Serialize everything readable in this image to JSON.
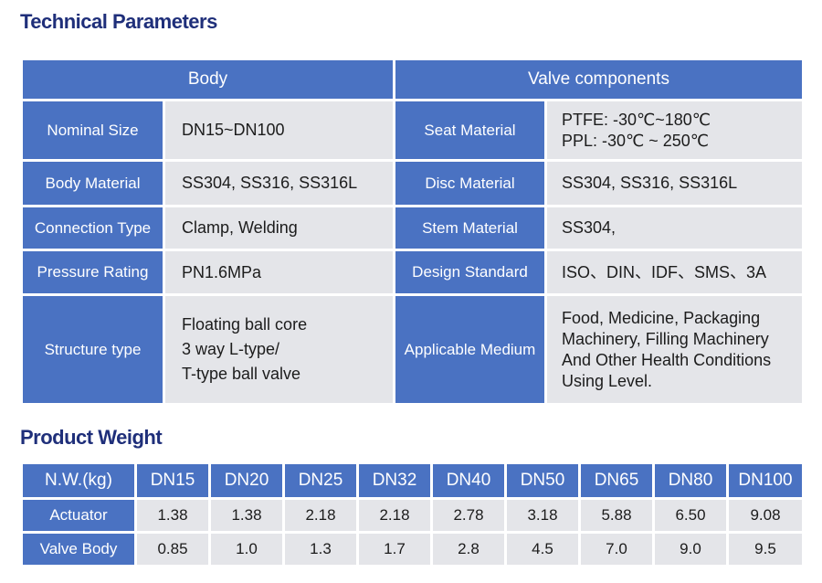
{
  "technical": {
    "title": "Technical Parameters",
    "header_body": "Body",
    "header_valve": "Valve components",
    "rows": [
      {
        "label_left": "Nominal Size",
        "value_left": [
          "DN15~DN100"
        ],
        "label_right": "Seat Material",
        "value_right": [
          "PTFE: -30℃~180℃",
          "PPL:  -30℃ ~ 250℃"
        ]
      },
      {
        "label_left": "Body Material",
        "value_left": [
          "SS304, SS316, SS316L"
        ],
        "label_right": "Disc Material",
        "value_right": [
          "SS304, SS316, SS316L"
        ]
      },
      {
        "label_left": "Connection Type",
        "value_left": [
          "Clamp, Welding"
        ],
        "label_right": "Stem Material",
        "value_right": [
          "SS304,"
        ]
      },
      {
        "label_left": "Pressure Rating",
        "value_left": [
          "PN1.6MPa"
        ],
        "label_right": "Design Standard",
        "value_right": [
          "ISO、DIN、IDF、SMS、3A"
        ]
      },
      {
        "label_left": "Structure type",
        "value_left": [
          "Floating ball core",
          "3 way L-type/",
          "T-type ball valve"
        ],
        "label_right": "Applicable Medium",
        "value_right": [
          "Food, Medicine, Packaging",
          "Machinery, Filling Machinery",
          "And Other Health Conditions",
          "Using Level."
        ]
      }
    ]
  },
  "weight": {
    "title": "Product Weight",
    "header_label": "N.W.(kg)",
    "sizes": [
      "DN15",
      "DN20",
      "DN25",
      "DN32",
      "DN40",
      "DN50",
      "DN65",
      "DN80",
      "DN100"
    ],
    "rows": [
      {
        "label": "Actuator",
        "values": [
          "1.38",
          "1.38",
          "2.18",
          "2.18",
          "2.78",
          "3.18",
          "5.88",
          "6.50",
          "9.08"
        ]
      },
      {
        "label": "Valve Body",
        "values": [
          "0.85",
          "1.0",
          "1.3",
          "1.7",
          "2.8",
          "4.5",
          "7.0",
          "9.0",
          "9.5"
        ]
      }
    ]
  },
  "colors": {
    "heading": "#1f2f7a",
    "header_fill": "#4a72c2",
    "cell_fill": "#e4e5e9"
  }
}
